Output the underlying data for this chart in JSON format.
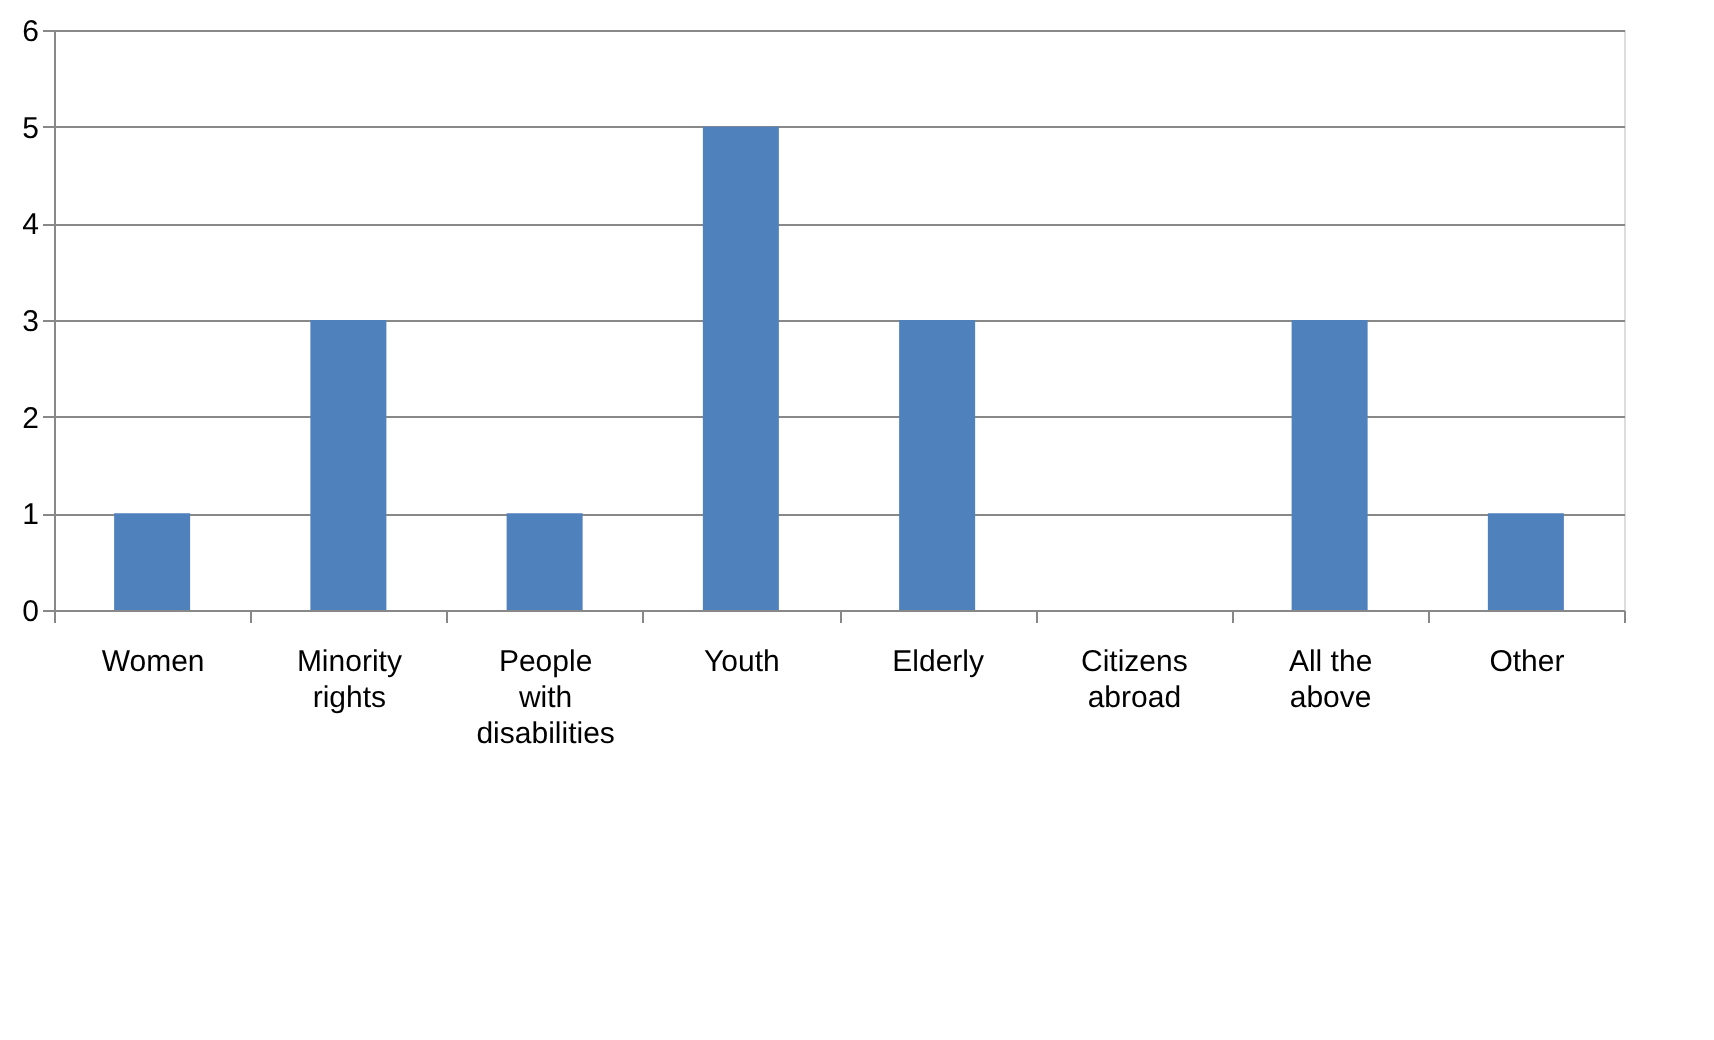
{
  "chart_data": {
    "type": "bar",
    "categories": [
      "Women",
      "Minority rights",
      "People with disabilities",
      "Youth",
      "Elderly",
      "Citizens abroad",
      "All the above",
      "Other"
    ],
    "values": [
      1,
      3,
      1,
      5,
      3,
      0,
      3,
      1
    ],
    "color": "#4f81bd",
    "ylim": [
      0,
      6
    ],
    "yticks": [
      0,
      1,
      2,
      3,
      4,
      5,
      6
    ],
    "grid": "y"
  }
}
